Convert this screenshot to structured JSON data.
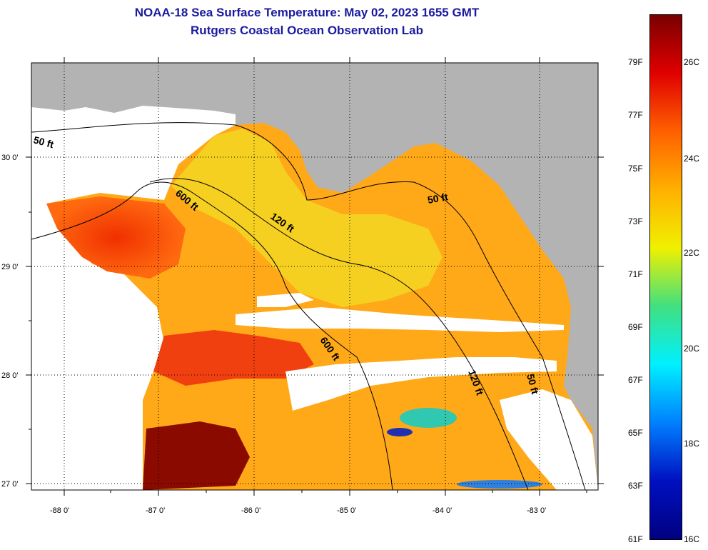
{
  "title": "NOAA-18 Sea Surface Temperature:  May 02, 2023 1655 GMT",
  "subtitle": "Rutgers Coastal Ocean Observation Lab",
  "map": {
    "lon_labels": [
      "-88 0'",
      "-87 0'",
      "-86 0'",
      "-85 0'",
      "-84 0'",
      "-83 0'"
    ],
    "lat_labels": [
      "30 0'",
      "29 0'",
      "28 0'",
      "27 0'"
    ],
    "contour_labels": [
      "50 ft",
      "600 ft",
      "120 ft",
      "50 ft",
      "600 ft",
      "120 ft",
      "50 ft"
    ]
  },
  "colorbar": {
    "f_labels": [
      "79F",
      "77F",
      "75F",
      "73F",
      "71F",
      "69F",
      "67F",
      "65F",
      "63F",
      "61F"
    ],
    "c_labels": [
      "26C",
      "24C",
      "22C",
      "20C",
      "18C",
      "16C"
    ],
    "colors": [
      "#7a0000",
      "#e00000",
      "#ff6000",
      "#ffb000",
      "#f0f000",
      "#40e080",
      "#00f0ff",
      "#0080ff",
      "#0010c0",
      "#000080"
    ]
  }
}
